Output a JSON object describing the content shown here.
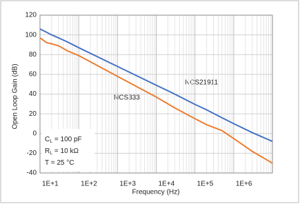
{
  "chart_data": {
    "type": "line",
    "ylabel": "Open Loop Gain (dB)",
    "xlabel": "Frequency (Hz)",
    "log_x": true,
    "grid": true,
    "x": [
      10,
      15,
      20,
      30,
      50,
      100,
      1000,
      10000,
      30000,
      100000,
      200000,
      500000,
      1000000,
      3000000,
      10000000
    ],
    "series": [
      {
        "name": "NCS21911",
        "color": "#4472c4",
        "values": [
          106,
          102.5,
          100,
          97,
          93,
          87,
          68,
          49,
          40,
          29.5,
          24,
          16,
          10,
          1,
          -8
        ]
      },
      {
        "name": "NCS333",
        "color": "#ed7d31",
        "values": [
          97,
          92,
          91,
          89,
          84,
          79,
          58,
          37,
          26,
          15,
          9,
          3,
          -5,
          -18,
          -30
        ]
      }
    ],
    "xlim": [
      10,
      10000000
    ],
    "xticks": [
      {
        "value": 10,
        "label": "1E+1"
      },
      {
        "value": 100,
        "label": "1E+2"
      },
      {
        "value": 1000,
        "label": "1E+3"
      },
      {
        "value": 10000,
        "label": "1E+4"
      },
      {
        "value": 100000,
        "label": "1E+5"
      },
      {
        "value": 1000000,
        "label": "1E+6"
      }
    ],
    "ylim": [
      -40,
      120
    ],
    "yticks": [
      -40,
      -20,
      0,
      20,
      40,
      60,
      80,
      100,
      120
    ],
    "conditions": [
      {
        "main": "C",
        "sub": "L",
        "rest": " = 100 pF"
      },
      {
        "main": "R",
        "sub": "L",
        "rest": " = 10 kΩ"
      },
      {
        "main": "T = 25 °C",
        "sub": "",
        "rest": ""
      }
    ]
  }
}
